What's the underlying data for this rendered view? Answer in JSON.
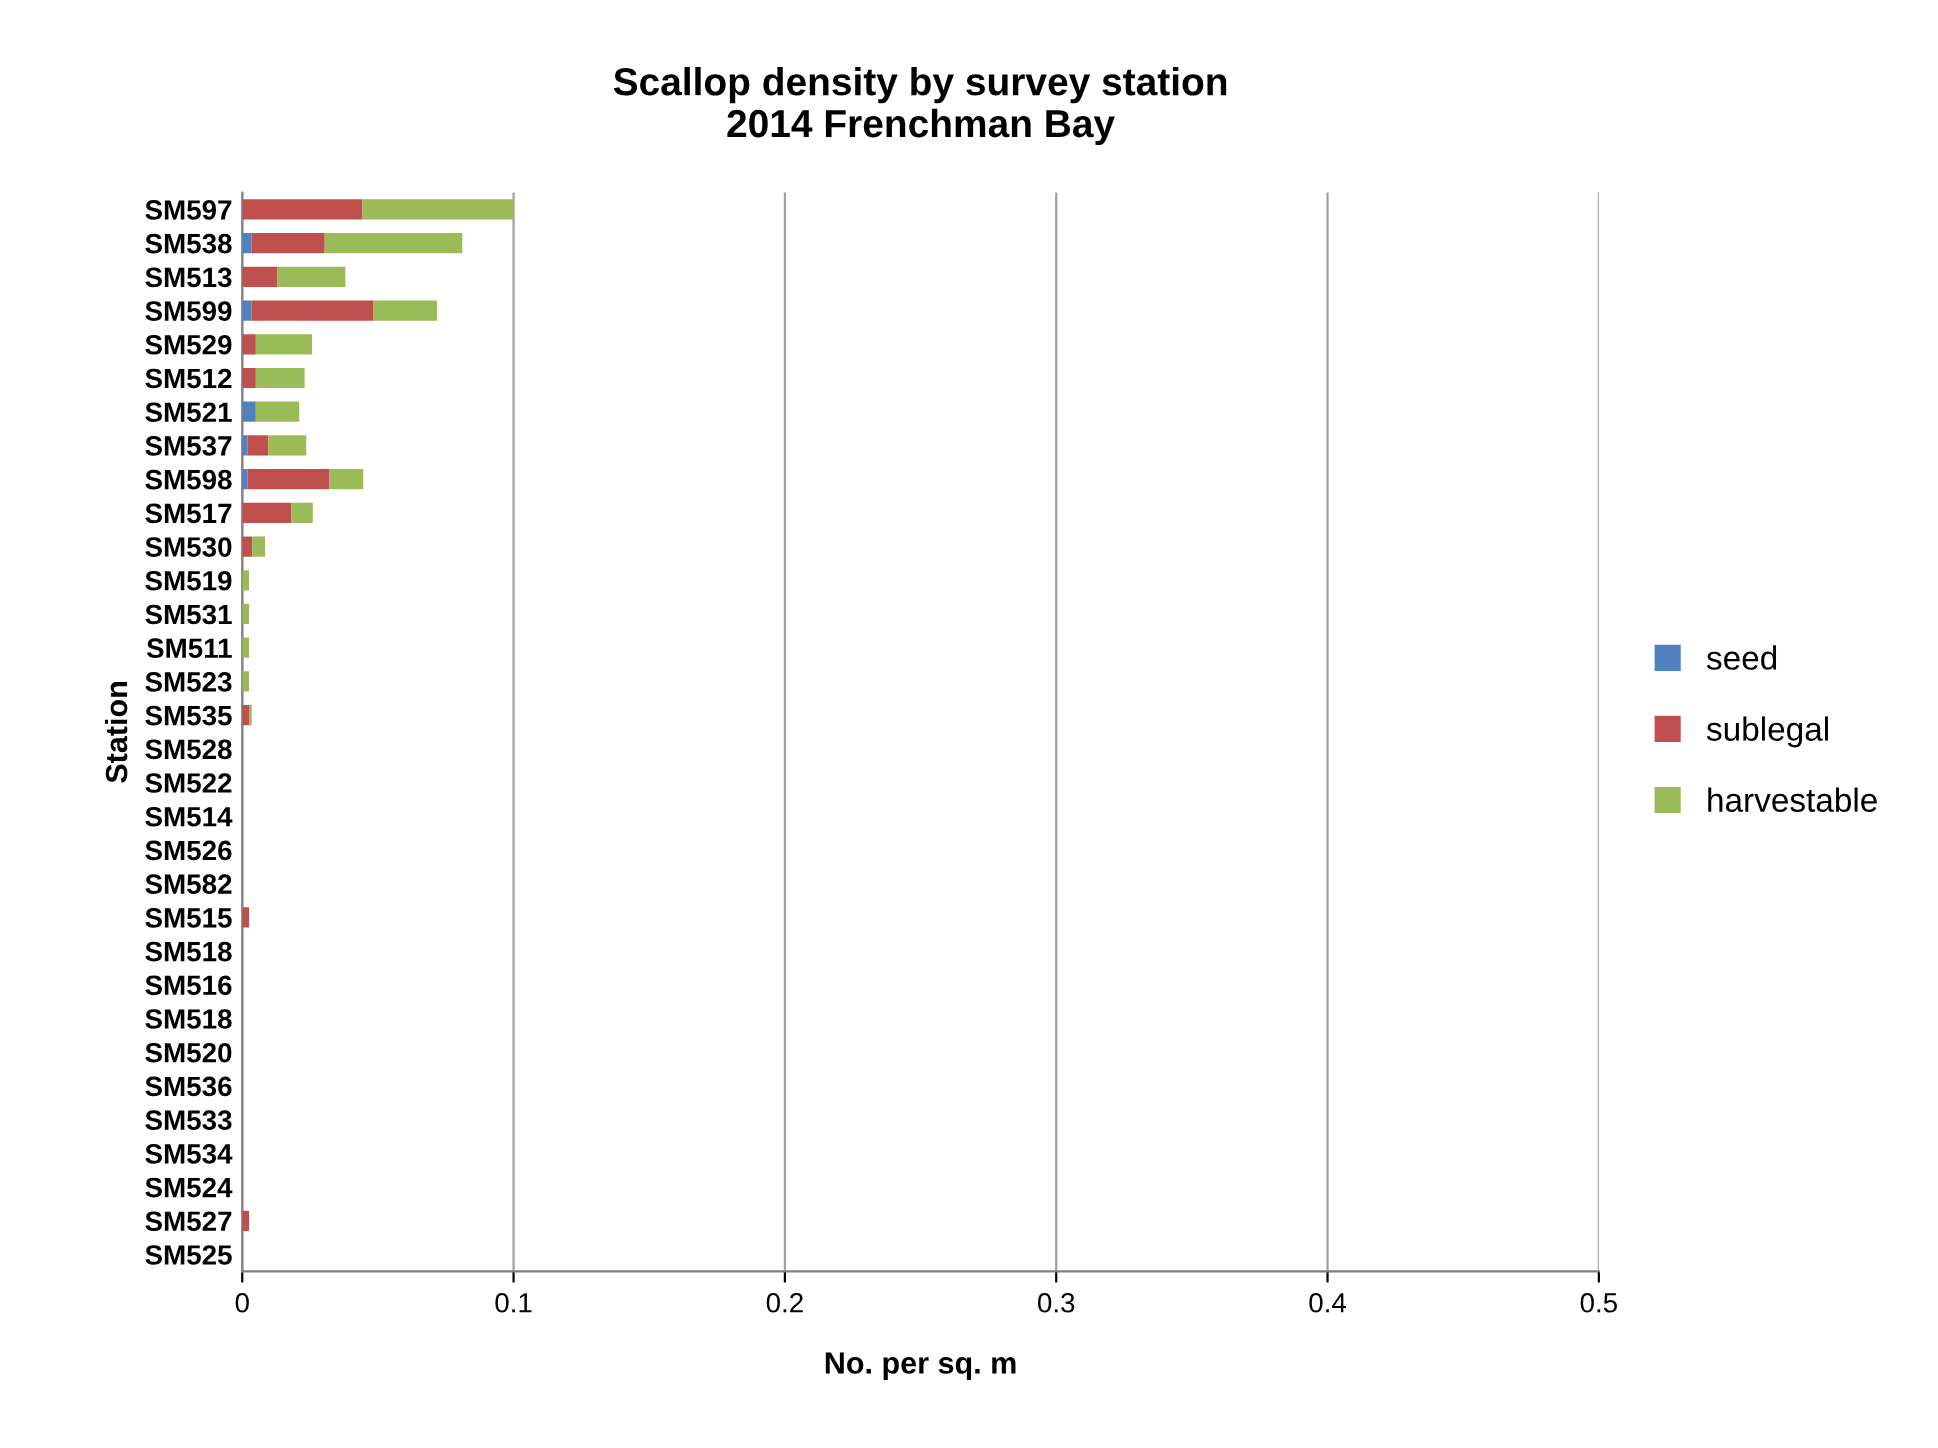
{
  "chart_data": {
    "type": "bar",
    "orientation": "horizontal",
    "stacked": true,
    "title": "Scallop density by survey station\n2014 Frenchman Bay",
    "xlabel": "No. per sq. m",
    "ylabel": "Station",
    "categories": [
      "SM597",
      "SM538",
      "SM513",
      "SM599",
      "SM529",
      "SM512",
      "SM521",
      "SM537",
      "SM598",
      "SM517",
      "SM530",
      "SM519",
      "SM531",
      "SM511",
      "SM523",
      "SM535",
      "SM528",
      "SM522",
      "SM514",
      "SM526",
      "SM582",
      "SM515",
      "SM518",
      "SM516",
      "SM518",
      "SM520",
      "SM536",
      "SM533",
      "SM534",
      "SM524",
      "SM527",
      "SM525"
    ],
    "series": [
      {
        "name": "seed",
        "color": "#4f81bd",
        "values": [
          0,
          0.0034,
          0,
          0.0034,
          0,
          0,
          0.005,
          0.002,
          0.002,
          0,
          0,
          0,
          0,
          0,
          0,
          0,
          0,
          0,
          0,
          0,
          0,
          0,
          0,
          0,
          0,
          0,
          0,
          0,
          0,
          0,
          0,
          0
        ]
      },
      {
        "name": "sublegal",
        "color": "#c0504d",
        "values": [
          0.0443,
          0.027,
          0.013,
          0.0448,
          0.005,
          0.005,
          0,
          0.0076,
          0.03,
          0.018,
          0.0037,
          0,
          0,
          0,
          0,
          0.0025,
          0,
          0,
          0,
          0,
          0,
          0.0025,
          0,
          0,
          0,
          0,
          0,
          0,
          0,
          0,
          0.0025,
          0
        ]
      },
      {
        "name": "harvestable",
        "color": "#9bbb59",
        "values": [
          0.0557,
          0.0507,
          0.025,
          0.0236,
          0.0207,
          0.018,
          0.016,
          0.014,
          0.0126,
          0.008,
          0.0047,
          0.0025,
          0.0025,
          0.0025,
          0.0025,
          0.001,
          0,
          0,
          0,
          0,
          0,
          0,
          0,
          0,
          0,
          0,
          0,
          0,
          0,
          0,
          0,
          0
        ]
      }
    ],
    "xlim": [
      0,
      0.5
    ],
    "xticks": [
      {
        "value": 0,
        "label": "0"
      },
      0.1,
      0.2,
      0.3,
      0.4,
      0.5
    ],
    "grid": "x",
    "legend": "right"
  }
}
